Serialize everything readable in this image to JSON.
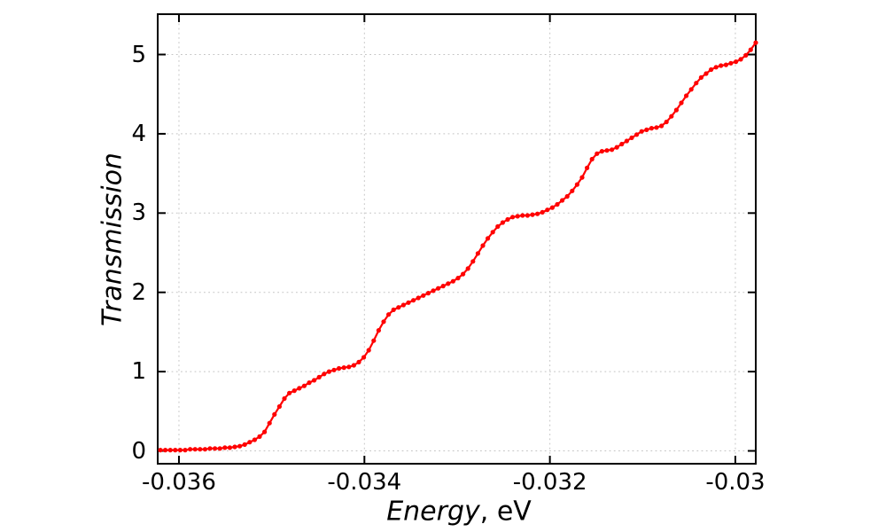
{
  "chart_data": {
    "type": "line",
    "title": "",
    "xlabel_italic": "Energy",
    "xlabel_unit": ", eV",
    "ylabel": "Transmission",
    "legend": "none",
    "grid": "dotted",
    "xlim": [
      -0.036229,
      -0.02978
    ],
    "ylim": [
      -0.162,
      5.509
    ],
    "x_ticks": [
      -0.036,
      -0.034,
      -0.032,
      -0.03
    ],
    "x_tick_labels": [
      "-0.036",
      "-0.034",
      "-0.032",
      "-0.03"
    ],
    "y_ticks": [
      0,
      1,
      2,
      3,
      4,
      5
    ],
    "y_tick_labels": [
      "0",
      "1",
      "2",
      "3",
      "4",
      "5"
    ],
    "style": {
      "series_color": "#ff0000",
      "grid_color": "#c4c4c4",
      "axis_color": "#000000",
      "background": "#ffffff",
      "marker": "filled-circle",
      "marker_radius": 2.6,
      "line_width": 2.2
    },
    "series": [
      {
        "name": "transmission",
        "x": [
          -0.0362,
          -0.036147,
          -0.036093,
          -0.03604,
          -0.035986,
          -0.035933,
          -0.035879,
          -0.035826,
          -0.035772,
          -0.035719,
          -0.035665,
          -0.035612,
          -0.035558,
          -0.035505,
          -0.035451,
          -0.035398,
          -0.035344,
          -0.035291,
          -0.035237,
          -0.035184,
          -0.03513,
          -0.035077,
          -0.035023,
          -0.03497,
          -0.034916,
          -0.034863,
          -0.034809,
          -0.034756,
          -0.034702,
          -0.034649,
          -0.034595,
          -0.034542,
          -0.034488,
          -0.034435,
          -0.034381,
          -0.034328,
          -0.034274,
          -0.034221,
          -0.034167,
          -0.034114,
          -0.03406,
          -0.034007,
          -0.033953,
          -0.0339,
          -0.033846,
          -0.033793,
          -0.033739,
          -0.033686,
          -0.033632,
          -0.033579,
          -0.033525,
          -0.033472,
          -0.033418,
          -0.033365,
          -0.033311,
          -0.033258,
          -0.033204,
          -0.033151,
          -0.033097,
          -0.033044,
          -0.03299,
          -0.032937,
          -0.032883,
          -0.03283,
          -0.032776,
          -0.032723,
          -0.032669,
          -0.032616,
          -0.032562,
          -0.032509,
          -0.032455,
          -0.032402,
          -0.032348,
          -0.032295,
          -0.032241,
          -0.032188,
          -0.032134,
          -0.032081,
          -0.032027,
          -0.031974,
          -0.03192,
          -0.031867,
          -0.031813,
          -0.03176,
          -0.031706,
          -0.031653,
          -0.031599,
          -0.031546,
          -0.031492,
          -0.031439,
          -0.031385,
          -0.031332,
          -0.031278,
          -0.031225,
          -0.031171,
          -0.031118,
          -0.031064,
          -0.031011,
          -0.030957,
          -0.030904,
          -0.03085,
          -0.030797,
          -0.030743,
          -0.03069,
          -0.030636,
          -0.030583,
          -0.030529,
          -0.030476,
          -0.030422,
          -0.030369,
          -0.030315,
          -0.030262,
          -0.030208,
          -0.030155,
          -0.030101,
          -0.030048,
          -0.029994,
          -0.029941,
          -0.029887,
          -0.029834,
          -0.02978
        ],
        "y": [
          0.01,
          0.01,
          0.01,
          0.01,
          0.01,
          0.01,
          0.02,
          0.02,
          0.02,
          0.02,
          0.03,
          0.03,
          0.03,
          0.04,
          0.04,
          0.05,
          0.06,
          0.08,
          0.11,
          0.14,
          0.18,
          0.24,
          0.35,
          0.46,
          0.56,
          0.66,
          0.73,
          0.76,
          0.79,
          0.82,
          0.86,
          0.89,
          0.93,
          0.97,
          1.0,
          1.02,
          1.04,
          1.05,
          1.06,
          1.08,
          1.12,
          1.18,
          1.27,
          1.39,
          1.52,
          1.63,
          1.72,
          1.78,
          1.81,
          1.84,
          1.87,
          1.9,
          1.93,
          1.96,
          1.99,
          2.02,
          2.05,
          2.08,
          2.11,
          2.14,
          2.18,
          2.23,
          2.3,
          2.39,
          2.49,
          2.59,
          2.68,
          2.76,
          2.83,
          2.88,
          2.92,
          2.95,
          2.96,
          2.97,
          2.97,
          2.98,
          2.99,
          3.01,
          3.04,
          3.07,
          3.11,
          3.16,
          3.21,
          3.28,
          3.36,
          3.45,
          3.57,
          3.68,
          3.75,
          3.78,
          3.79,
          3.8,
          3.83,
          3.87,
          3.91,
          3.95,
          3.99,
          4.03,
          4.05,
          4.07,
          4.08,
          4.1,
          4.15,
          4.22,
          4.3,
          4.39,
          4.48,
          4.56,
          4.64,
          4.71,
          4.76,
          4.81,
          4.84,
          4.86,
          4.87,
          4.89,
          4.91,
          4.94,
          4.99,
          5.06,
          5.15
        ]
      }
    ]
  }
}
